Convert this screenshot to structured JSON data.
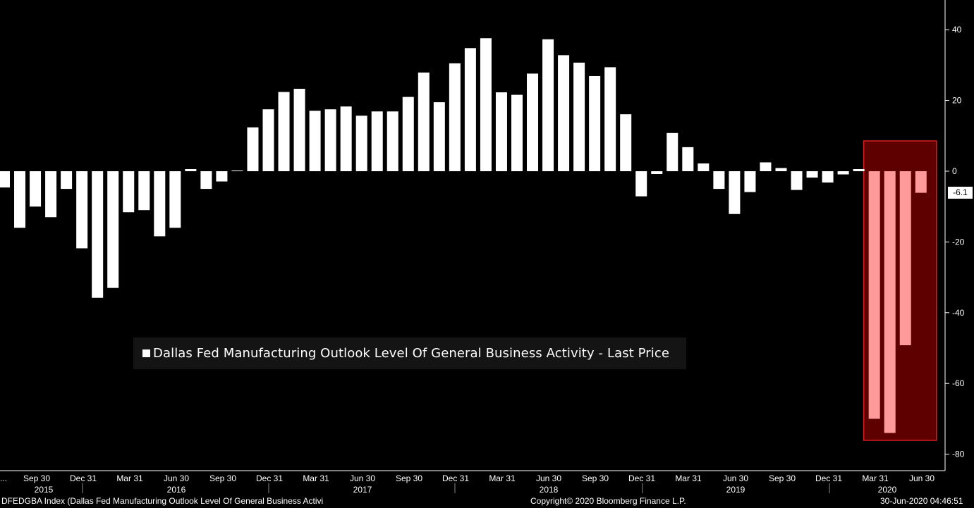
{
  "chart_data": {
    "type": "bar",
    "title": "Dallas Fed Manufacturing Outlook Level Of General Business Activity - Last Price",
    "ylim": [
      -85,
      48
    ],
    "y_ticks": [
      40,
      20,
      0,
      -20,
      -40,
      -60,
      -80
    ],
    "y_tick_labels": [
      "40",
      "20",
      "0",
      "-20",
      "-40",
      "-60",
      "-80"
    ],
    "x_tick_labels": [
      "...",
      "Sep 30",
      "Dec 31",
      "Mar 31",
      "Jun 30",
      "Sep 30",
      "Dec 31",
      "Mar 31",
      "Jun 30",
      "Sep 30",
      "Dec 31",
      "Mar 31",
      "Jun 30",
      "Sep 30",
      "Dec 31",
      "Mar 31",
      "Jun 30",
      "Sep 30",
      "Dec 31",
      "Mar 31",
      "Jun 30"
    ],
    "year_labels": [
      "2015",
      "2016",
      "2017",
      "2018",
      "2019",
      "2020"
    ],
    "grid": false,
    "legend_position": "center-left",
    "series": [
      {
        "values": [
          -4.6,
          -16.0,
          -10.0,
          -13.0,
          -5.0,
          -21.8,
          -35.8,
          -33.0,
          -11.6,
          -11.0,
          -18.4,
          -16.0,
          0.6,
          -5.0,
          -2.9,
          0.2,
          12.4,
          17.5,
          22.4,
          23.3,
          17.1,
          17.5,
          18.3,
          15.7,
          16.9,
          16.9,
          21.0,
          27.9,
          19.5,
          30.5,
          34.8,
          37.6,
          22.3,
          21.6,
          27.6,
          37.3,
          32.8,
          30.7,
          26.9,
          29.4,
          16.1,
          -7.1,
          -0.8,
          10.8,
          6.8,
          2.2,
          -5.0,
          -12.1,
          -5.9,
          2.5,
          0.9,
          -5.3,
          -1.8,
          -3.2,
          -0.9,
          0.6,
          -70.0,
          -74.0,
          -49.2,
          -6.1
        ],
        "highlight_from": 56
      }
    ],
    "last_value_label": "-6.1",
    "colors": {
      "background": "#000000",
      "bar": "#ffffff",
      "highlight_bar": "#ff9a9a",
      "highlight_box_fill": "#5e0000",
      "highlight_box_stroke": "#d42020",
      "legend_bg": "#141414"
    }
  },
  "footer": {
    "ticker_text": "DFEDGBA Index (Dallas Fed Manufacturing Outlook Level Of General Business Activi",
    "copyright": "Copyright© 2020 Bloomberg Finance L.P.",
    "timestamp": "30-Jun-2020 04:46:51"
  }
}
